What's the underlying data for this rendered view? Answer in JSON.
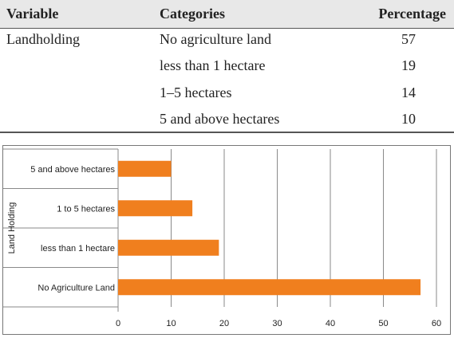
{
  "table": {
    "headers": [
      "Variable",
      "Categories",
      "Percentage"
    ],
    "variable": "Landholding",
    "rows": [
      {
        "category": "No agriculture land",
        "percentage": "57"
      },
      {
        "category": "less than 1 hectare",
        "percentage": "19"
      },
      {
        "category": "1–5 hectares",
        "percentage": "14"
      },
      {
        "category": "5 and above hectares",
        "percentage": "10"
      }
    ]
  },
  "chart_data": {
    "type": "bar",
    "orientation": "horizontal",
    "ylabel": "Land Holding",
    "xlabel": "",
    "title": "",
    "categories": [
      "5 and above hectares",
      "1 to 5 hectares",
      "less than 1 hectare",
      "No Agriculture Land"
    ],
    "values": [
      10,
      14,
      19,
      57
    ],
    "xlim": [
      0,
      60
    ],
    "xticks": [
      0,
      10,
      20,
      30,
      40,
      50,
      60
    ],
    "grid": "vertical",
    "bar_color": "#f07f1e"
  }
}
